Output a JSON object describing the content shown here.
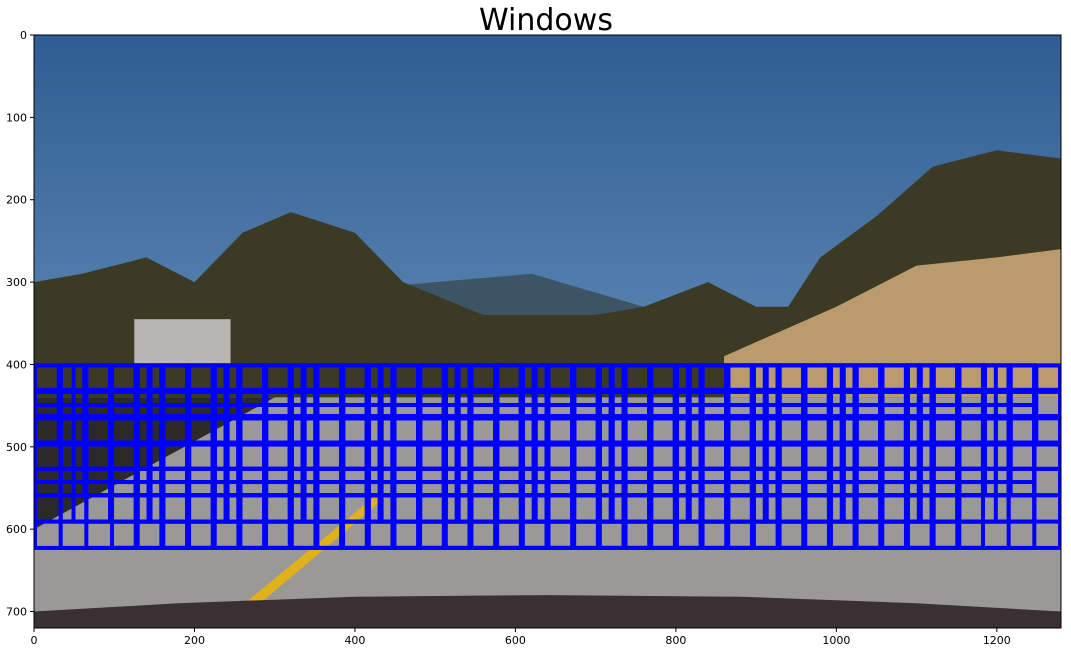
{
  "chart_data": {
    "type": "image",
    "title": "Windows",
    "xlabel": "",
    "ylabel": "",
    "image_size": [
      1280,
      720
    ],
    "xlim": [
      0,
      1280
    ],
    "ylim": [
      720,
      0
    ],
    "xticks": [
      0,
      200,
      400,
      600,
      800,
      1000,
      1200
    ],
    "yticks": [
      0,
      100,
      200,
      300,
      400,
      500,
      600,
      700
    ],
    "grid": false,
    "window_color": "#0000ff",
    "search_windows": [
      {
        "size": 32,
        "overlap": 0.0,
        "y_start": 400,
        "y_stop": 496
      },
      {
        "size": 64,
        "overlap": 0.5,
        "y_start": 400,
        "y_stop": 560
      },
      {
        "size": 96,
        "overlap": 0.5,
        "y_start": 400,
        "y_stop": 592
      },
      {
        "size": 128,
        "overlap": 0.75,
        "y_start": 400,
        "y_stop": 624
      }
    ],
    "scene_colors": {
      "sky_top": "#2f5d92",
      "sky_bottom": "#7ea6cd",
      "hills": "#3d5465",
      "trees": "#3c3a24",
      "hill_right": "#b99b6e",
      "road": "#9b9997",
      "lane_line": "#e0b11a",
      "hood": "#3a2f33"
    }
  }
}
